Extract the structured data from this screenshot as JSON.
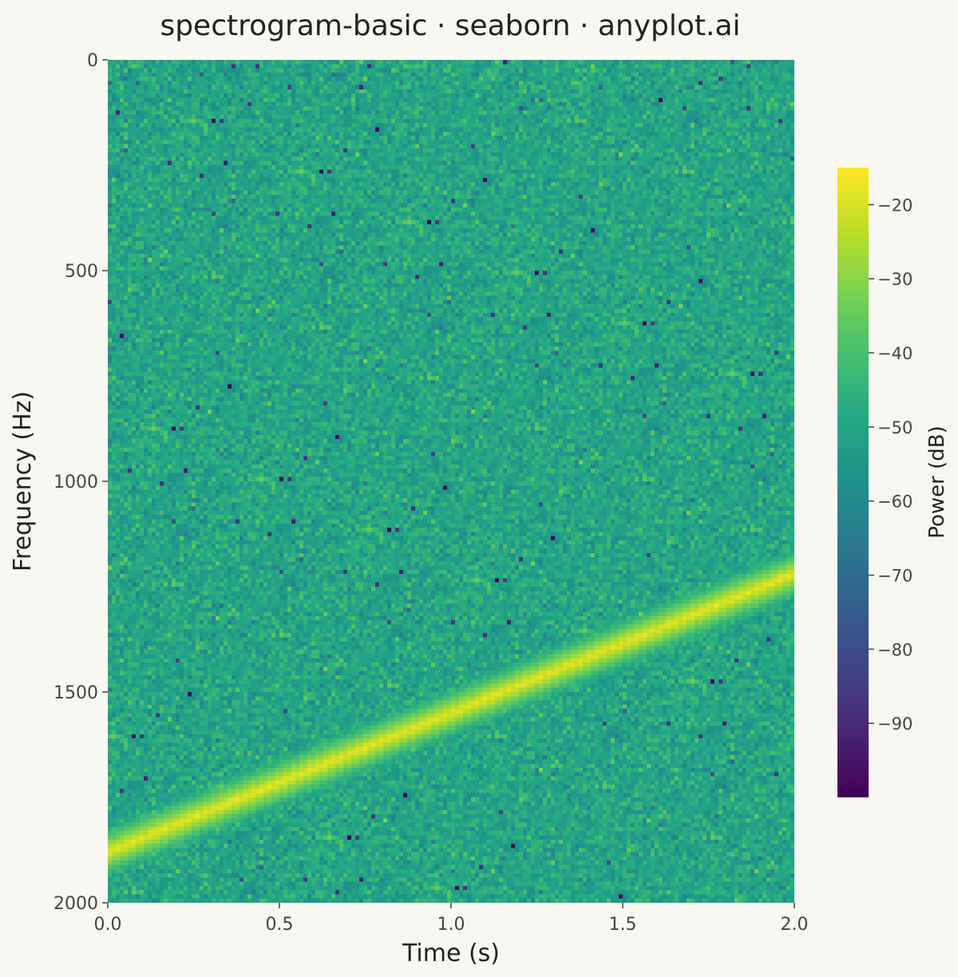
{
  "chart_data": {
    "type": "heatmap",
    "title": "spectrogram-basic · seaborn · anyplot.ai",
    "xlabel": "Time (s)",
    "ylabel": "Frequency (Hz)",
    "xlim": [
      0.0,
      2.0
    ],
    "ylim": [
      2000,
      0
    ],
    "x_ticks": [
      "0.0",
      "0.5",
      "1.0",
      "1.5",
      "2.0"
    ],
    "y_ticks": [
      "0",
      "500",
      "1000",
      "1500",
      "2000"
    ],
    "colormap": "viridis",
    "colorbar": {
      "label": "Power (dB)",
      "range": [
        -100,
        -15
      ],
      "ticks": [
        "−20",
        "−30",
        "−40",
        "−50",
        "−60",
        "−70",
        "−80",
        "−90"
      ],
      "tick_values": [
        -20,
        -30,
        -40,
        -50,
        -60,
        -70,
        -80,
        -90
      ]
    },
    "background_power_db": -50,
    "chirp": {
      "description": "linear chirp ridge",
      "start": {
        "time_s": 0.0,
        "frequency_hz": 1880
      },
      "end": {
        "time_s": 2.0,
        "frequency_hz": 1220
      },
      "peak_power_db": -17
    },
    "grid": false
  }
}
